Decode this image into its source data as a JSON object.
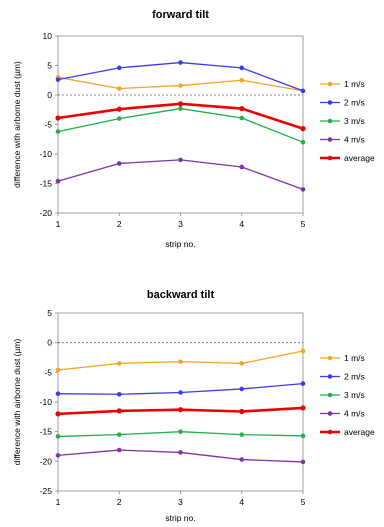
{
  "chart_data": [
    {
      "type": "line",
      "title": "forward tilt",
      "xlabel": "strip no.",
      "ylabel": "difference with airborne dust (µm)",
      "x": [
        1,
        2,
        3,
        4,
        5
      ],
      "xticks": [
        "1",
        "2",
        "3",
        "4",
        "5"
      ],
      "ylim": [
        -20,
        10
      ],
      "yticks": [
        10,
        5,
        0,
        -5,
        -10,
        -15,
        -20
      ],
      "reference_line": 0,
      "grid": false,
      "legend_position": "right",
      "series": [
        {
          "name": "1 m/s",
          "color": "#f5a623",
          "values": [
            3.0,
            1.1,
            1.6,
            2.5,
            0.7
          ]
        },
        {
          "name": "2 m/s",
          "color": "#3b3bf5",
          "values": [
            2.6,
            4.6,
            5.5,
            4.6,
            0.7
          ]
        },
        {
          "name": "3 m/s",
          "color": "#22b04b",
          "values": [
            -6.2,
            -4.0,
            -2.3,
            -3.9,
            -8.0
          ]
        },
        {
          "name": "4 m/s",
          "color": "#7b35a8",
          "values": [
            -14.6,
            -11.6,
            -11.0,
            -12.2,
            -16.0
          ]
        },
        {
          "name": "average",
          "color": "#ee0000",
          "values": [
            -3.9,
            -2.4,
            -1.5,
            -2.3,
            -5.7
          ]
        }
      ]
    },
    {
      "type": "line",
      "title": "backward tilt",
      "xlabel": "strip no.",
      "ylabel": "difference with airborne dust (µm)",
      "x": [
        1,
        2,
        3,
        4,
        5
      ],
      "xticks": [
        "1",
        "2",
        "3",
        "4",
        "5"
      ],
      "ylim": [
        -25,
        5
      ],
      "yticks": [
        5,
        0,
        -5,
        -10,
        -15,
        -20,
        -25
      ],
      "reference_line": 0,
      "grid": false,
      "legend_position": "right",
      "series": [
        {
          "name": "1 m/s",
          "color": "#f5a623",
          "values": [
            -4.6,
            -3.5,
            -3.2,
            -3.5,
            -1.4
          ]
        },
        {
          "name": "2 m/s",
          "color": "#3b3bf5",
          "values": [
            -8.6,
            -8.7,
            -8.4,
            -7.8,
            -6.9
          ]
        },
        {
          "name": "3 m/s",
          "color": "#22b04b",
          "values": [
            -15.8,
            -15.5,
            -15.0,
            -15.5,
            -15.7
          ]
        },
        {
          "name": "4 m/s",
          "color": "#7b35a8",
          "values": [
            -19.0,
            -18.1,
            -18.5,
            -19.7,
            -20.1
          ]
        },
        {
          "name": "average",
          "color": "#ee0000",
          "values": [
            -12.0,
            -11.5,
            -11.3,
            -11.6,
            -11.0
          ]
        }
      ]
    }
  ]
}
